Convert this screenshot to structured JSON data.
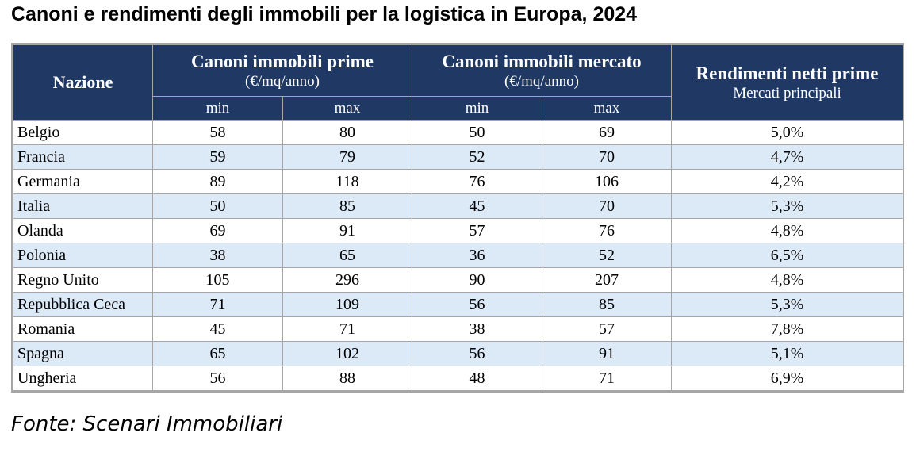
{
  "title": "Canoni e rendimenti degli immobili per la logistica in Europa, 2024",
  "source": "Fonte: Scenari Immobiliari",
  "colors": {
    "header_bg": "#1f3864",
    "alt_row_bg": "#dce9f7",
    "border": "#a6a6a6"
  },
  "chart_data": {
    "type": "table",
    "headers": {
      "country": "Nazione",
      "prime": {
        "label": "Canoni immobili prime",
        "unit": "(€/mq/anno)"
      },
      "market": {
        "label": "Canoni immobili mercato",
        "unit": "(€/mq/anno)"
      },
      "yield": {
        "label": "Rendimenti netti prime",
        "sub": "Mercati principali"
      },
      "min": "min",
      "max": "max"
    },
    "columns": [
      "Nazione",
      "Canoni immobili prime min",
      "Canoni immobili prime max",
      "Canoni immobili mercato min",
      "Canoni immobili mercato max",
      "Rendimenti netti prime"
    ],
    "rows": [
      {
        "country": "Belgio",
        "prime_min": "58",
        "prime_max": "80",
        "market_min": "50",
        "market_max": "69",
        "yield": "5,0%"
      },
      {
        "country": "Francia",
        "prime_min": "59",
        "prime_max": "79",
        "market_min": "52",
        "market_max": "70",
        "yield": "4,7%"
      },
      {
        "country": "Germania",
        "prime_min": "89",
        "prime_max": "118",
        "market_min": "76",
        "market_max": "106",
        "yield": "4,2%"
      },
      {
        "country": "Italia",
        "prime_min": "50",
        "prime_max": "85",
        "market_min": "45",
        "market_max": "70",
        "yield": "5,3%"
      },
      {
        "country": "Olanda",
        "prime_min": "69",
        "prime_max": "91",
        "market_min": "57",
        "market_max": "76",
        "yield": "4,8%"
      },
      {
        "country": "Polonia",
        "prime_min": "38",
        "prime_max": "65",
        "market_min": "36",
        "market_max": "52",
        "yield": "6,5%"
      },
      {
        "country": "Regno Unito",
        "prime_min": "105",
        "prime_max": "296",
        "market_min": "90",
        "market_max": "207",
        "yield": "4,8%"
      },
      {
        "country": "Repubblica Ceca",
        "prime_min": "71",
        "prime_max": "109",
        "market_min": "56",
        "market_max": "85",
        "yield": "5,3%"
      },
      {
        "country": "Romania",
        "prime_min": "45",
        "prime_max": "71",
        "market_min": "38",
        "market_max": "57",
        "yield": "7,8%"
      },
      {
        "country": "Spagna",
        "prime_min": "65",
        "prime_max": "102",
        "market_min": "56",
        "market_max": "91",
        "yield": "5,1%"
      },
      {
        "country": "Ungheria",
        "prime_min": "56",
        "prime_max": "88",
        "market_min": "48",
        "market_max": "71",
        "yield": "6,9%"
      }
    ]
  }
}
